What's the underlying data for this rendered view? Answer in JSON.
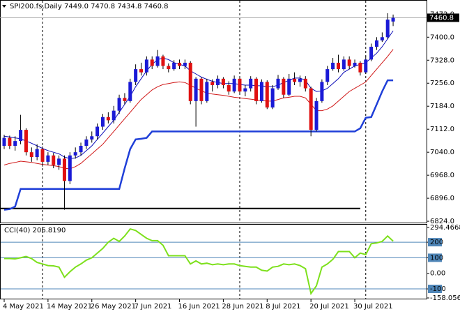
{
  "chart_data": [
    {
      "type": "candlestick",
      "title": "SPI200.fs,Daily  7449.0 7470.8 7434.8 7460.8",
      "categories": [
        "4 May 2021",
        null,
        null,
        null,
        null,
        null,
        null,
        null,
        "14 May 2021",
        null,
        null,
        null,
        null,
        null,
        null,
        null,
        "26 May 2021",
        null,
        null,
        null,
        null,
        null,
        null,
        null,
        "7 Jun 2021",
        null,
        null,
        null,
        null,
        null,
        null,
        null,
        "16 Jun 2021",
        null,
        null,
        null,
        null,
        null,
        null,
        null,
        "28 Jun 2021",
        null,
        null,
        null,
        null,
        null,
        null,
        null,
        "8 Jul 2021",
        null,
        null,
        null,
        null,
        null,
        null,
        null,
        "20 Jul 2021",
        null,
        null,
        null,
        null,
        null,
        null,
        null,
        "30 Jul 2021",
        null,
        null,
        null,
        null,
        null,
        null,
        null
      ],
      "open": [
        7060,
        7085,
        7060,
        7075,
        7110,
        7040,
        7025,
        7050,
        7010,
        7030,
        7000,
        7020,
        6950,
        7030,
        7040,
        7060,
        7080,
        7090,
        7120,
        7150,
        7140,
        7170,
        7210,
        7200,
        7260,
        7300,
        7290,
        7330,
        7310,
        7340,
        7310,
        7300,
        7320,
        7310,
        7320,
        7200,
        7270,
        7200,
        7260,
        7250,
        7270,
        7250,
        7230,
        7270,
        7230,
        7240,
        7270,
        7200,
        7260,
        7180,
        7240,
        7270,
        7220,
        7270,
        7260,
        7270,
        7240,
        7110,
        7200,
        7260,
        7300,
        7320,
        7300,
        7330,
        7310,
        7320,
        7290,
        7330,
        7370,
        7390,
        7400,
        7449.0
      ],
      "high": [
        7095,
        7092,
        7090,
        7157,
        7115,
        7055,
        7065,
        7058,
        7040,
        7038,
        7030,
        7030,
        7040,
        7055,
        7070,
        7090,
        7105,
        7130,
        7160,
        7165,
        7185,
        7220,
        7225,
        7270,
        7315,
        7320,
        7340,
        7340,
        7360,
        7345,
        7318,
        7328,
        7330,
        7330,
        7325,
        7275,
        7275,
        7270,
        7268,
        7280,
        7275,
        7262,
        7280,
        7275,
        7250,
        7278,
        7275,
        7268,
        7265,
        7250,
        7282,
        7275,
        7285,
        7290,
        7280,
        7278,
        7245,
        7210,
        7268,
        7310,
        7335,
        7345,
        7340,
        7340,
        7330,
        7325,
        7340,
        7380,
        7400,
        7415,
        7475,
        7470.8
      ],
      "low": [
        7050,
        7050,
        7045,
        7065,
        7030,
        7010,
        7015,
        6995,
        7000,
        6990,
        6985,
        6860,
        6940,
        7020,
        7030,
        7050,
        7070,
        7080,
        7110,
        7130,
        7130,
        7160,
        7190,
        7195,
        7250,
        7280,
        7280,
        7300,
        7305,
        7300,
        7290,
        7295,
        7300,
        7300,
        7190,
        7120,
        7190,
        7195,
        7230,
        7240,
        7240,
        7220,
        7225,
        7220,
        7215,
        7230,
        7190,
        7195,
        7175,
        7175,
        7235,
        7210,
        7215,
        7250,
        7245,
        7230,
        7090,
        7105,
        7195,
        7250,
        7295,
        7290,
        7295,
        7300,
        7305,
        7280,
        7285,
        7325,
        7360,
        7385,
        7395,
        7434.8
      ],
      "close": [
        7085,
        7060,
        7075,
        7110,
        7040,
        7025,
        7050,
        7010,
        7030,
        7000,
        7020,
        6950,
        7030,
        7040,
        7060,
        7080,
        7090,
        7120,
        7150,
        7140,
        7170,
        7210,
        7200,
        7260,
        7300,
        7290,
        7330,
        7310,
        7340,
        7310,
        7300,
        7320,
        7310,
        7320,
        7200,
        7270,
        7200,
        7260,
        7250,
        7270,
        7250,
        7230,
        7270,
        7230,
        7240,
        7270,
        7200,
        7260,
        7180,
        7240,
        7270,
        7220,
        7270,
        7260,
        7270,
        7240,
        7110,
        7200,
        7260,
        7300,
        7320,
        7300,
        7330,
        7310,
        7320,
        7290,
        7330,
        7370,
        7390,
        7400,
        7455,
        7460.8
      ],
      "up_color": "#1a1ad6",
      "down_color": "#e01010",
      "wick_color": "#000000",
      "overlays": [
        {
          "color": "#0c0cb8",
          "width": 1,
          "values": [
            7090,
            7088,
            7085,
            7082,
            7075,
            7068,
            7060,
            7052,
            7045,
            7040,
            7035,
            7025,
            7020,
            7022,
            7030,
            7045,
            7060,
            7080,
            7100,
            7120,
            7140,
            7165,
            7190,
            7215,
            7245,
            7270,
            7295,
            7315,
            7330,
            7335,
            7330,
            7320,
            7315,
            7310,
            7295,
            7285,
            7275,
            7268,
            7262,
            7258,
            7255,
            7255,
            7255,
            7252,
            7250,
            7250,
            7248,
            7248,
            7245,
            7245,
            7250,
            7258,
            7265,
            7272,
            7272,
            7265,
            7240,
            7230,
            7232,
            7240,
            7255,
            7270,
            7290,
            7300,
            7310,
            7315,
            7320,
            7335,
            7350,
            7370,
            7395,
            7420
          ]
        },
        {
          "color": "#d01818",
          "width": 1,
          "values": [
            7000,
            7005,
            7008,
            7012,
            7010,
            7008,
            7005,
            7002,
            7000,
            6998,
            6995,
            6990,
            6988,
            6995,
            7005,
            7020,
            7035,
            7050,
            7065,
            7085,
            7105,
            7125,
            7145,
            7165,
            7185,
            7205,
            7220,
            7235,
            7245,
            7252,
            7255,
            7258,
            7260,
            7258,
            7250,
            7240,
            7232,
            7225,
            7222,
            7220,
            7218,
            7215,
            7212,
            7210,
            7208,
            7206,
            7204,
            7202,
            7200,
            7200,
            7205,
            7210,
            7212,
            7215,
            7215,
            7210,
            7190,
            7170,
            7170,
            7175,
            7185,
            7200,
            7215,
            7230,
            7240,
            7250,
            7260,
            7280,
            7300,
            7320,
            7340,
            7362
          ]
        },
        {
          "color": "#1f3fd8",
          "width": 2.5,
          "values": [
            6860,
            6862,
            6870,
            6925,
            6925,
            6925,
            6925,
            6925,
            6925,
            6925,
            6925,
            6925,
            6925,
            6925,
            6925,
            6925,
            6925,
            6925,
            6925,
            6925,
            6925,
            6925,
            6990,
            7050,
            7080,
            7082,
            7085,
            7105,
            7105,
            7105,
            7105,
            7105,
            7105,
            7105,
            7105,
            7105,
            7105,
            7105,
            7105,
            7105,
            7105,
            7105,
            7105,
            7105,
            7105,
            7105,
            7105,
            7105,
            7105,
            7105,
            7105,
            7105,
            7105,
            7105,
            7105,
            7105,
            7105,
            7105,
            7105,
            7105,
            7105,
            7105,
            7105,
            7105,
            7105,
            7115,
            7148,
            7150,
            7190,
            7230,
            7265,
            7265
          ]
        }
      ],
      "support": {
        "value": 6864,
        "from": 0,
        "to": 65
      },
      "separators": [
        7,
        43,
        66
      ],
      "ylim": [
        6822,
        7512
      ],
      "yticks": [
        {
          "value": 7472,
          "label": "7472.0"
        },
        {
          "value": 7400,
          "label": "7400.0"
        },
        {
          "value": 7328,
          "label": "7328.0"
        },
        {
          "value": 7256,
          "label": "7256.0"
        },
        {
          "value": 7184,
          "label": "7184.0"
        },
        {
          "value": 7112,
          "label": "7112.0"
        },
        {
          "value": 7040,
          "label": "7040.0"
        },
        {
          "value": 6968,
          "label": "6968.0"
        },
        {
          "value": 6896,
          "label": "6896.0"
        },
        {
          "value": 6824,
          "label": "6824.0"
        }
      ]
    },
    {
      "type": "line",
      "title": "CCI(40) 206.8190",
      "values": [
        95,
        95,
        93,
        100,
        108,
        95,
        70,
        60,
        50,
        48,
        40,
        -25,
        10,
        40,
        60,
        85,
        100,
        130,
        160,
        200,
        225,
        205,
        240,
        285,
        275,
        250,
        225,
        210,
        210,
        180,
        113,
        113,
        113,
        113,
        60,
        80,
        60,
        65,
        55,
        60,
        55,
        60,
        60,
        50,
        45,
        40,
        40,
        20,
        15,
        40,
        45,
        60,
        55,
        60,
        50,
        30,
        -130,
        -80,
        40,
        60,
        90,
        140,
        140,
        140,
        100,
        130,
        120,
        190,
        195,
        205,
        240,
        206.819
      ],
      "color": "#7de01c",
      "levels": [
        200,
        100,
        -100
      ],
      "level_color": "#4f86b8",
      "ylim": [
        -158.056,
        294.4668
      ],
      "yticks": [
        294.4668,
        200,
        100,
        {
          "value": 0,
          "label": "0.00"
        },
        -100,
        -158.056
      ]
    }
  ]
}
